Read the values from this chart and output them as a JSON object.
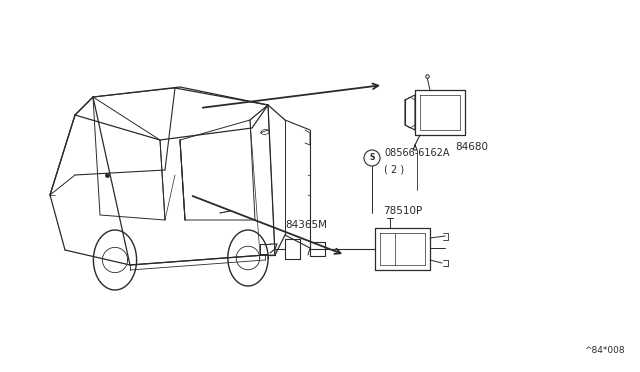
{
  "background_color": "#ffffff",
  "figure_width": 6.4,
  "figure_height": 3.72,
  "dpi": 100,
  "page_id": "^84*008",
  "line_color": "#2a2a2a",
  "text_color": "#2a2a2a",
  "part_84680_label": "84680",
  "part_08566_label": "08566-6162A",
  "part_08566_qty": "( 2 )",
  "part_78510P_label": "78510P",
  "part_84365M_label": "84365M"
}
